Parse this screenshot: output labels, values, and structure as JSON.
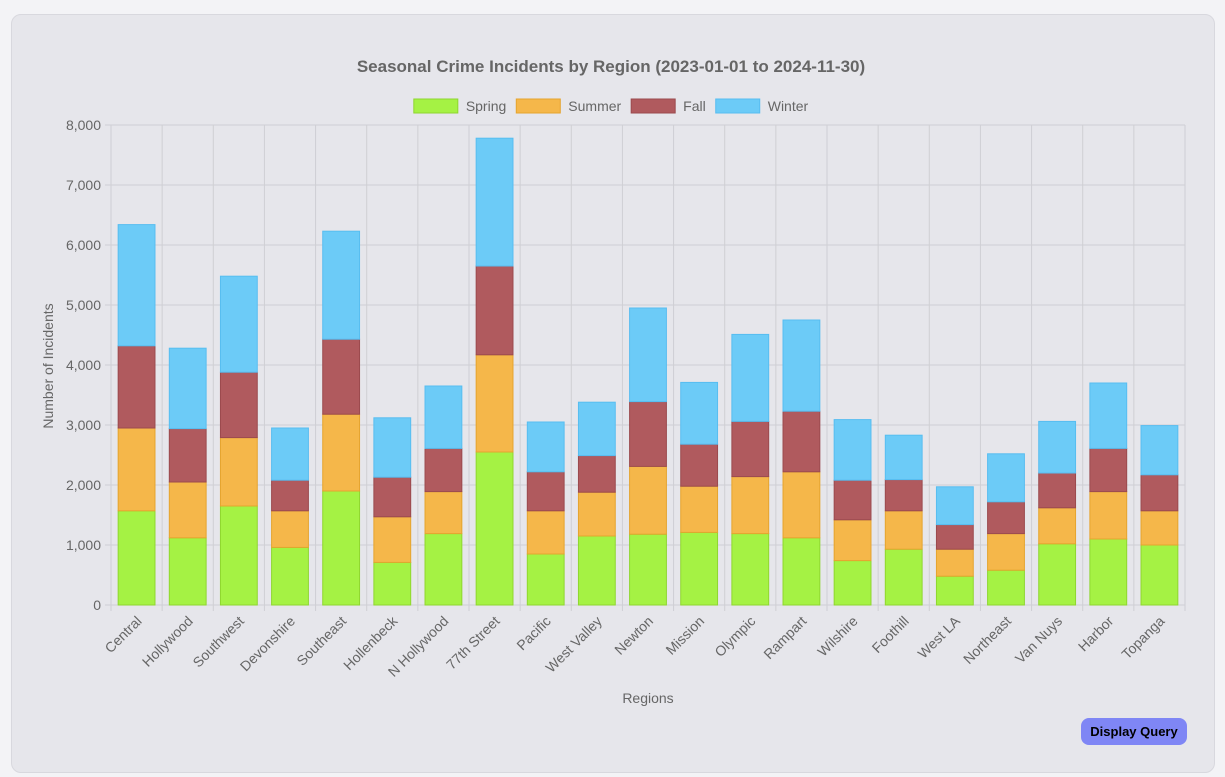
{
  "button": {
    "display_query": "Display Query"
  },
  "chart_data": {
    "type": "bar",
    "stacked": true,
    "title": "Seasonal Crime Incidents by Region (2023-01-01 to 2024-11-30)",
    "xlabel": "Regions",
    "ylabel": "Number of Incidents",
    "ylim": [
      0,
      8000
    ],
    "yticks": [
      0,
      1000,
      2000,
      3000,
      4000,
      5000,
      6000,
      7000,
      8000
    ],
    "ytick_labels": [
      "0",
      "1,000",
      "2,000",
      "3,000",
      "4,000",
      "5,000",
      "6,000",
      "7,000",
      "8,000"
    ],
    "grid": true,
    "legend_position": "top",
    "categories": [
      "Central",
      "Hollywood",
      "Southwest",
      "Devonshire",
      "Southeast",
      "Hollenbeck",
      "N Hollywood",
      "77th Street",
      "Pacific",
      "West Valley",
      "Newton",
      "Mission",
      "Olympic",
      "Rampart",
      "Wilshire",
      "Foothill",
      "West LA",
      "Northeast",
      "Van Nuys",
      "Harbor",
      "Topanga"
    ],
    "series": [
      {
        "name": "Spring",
        "color": "#a5f244",
        "border": "#8fd62f",
        "values": [
          1570,
          1120,
          1650,
          960,
          1900,
          710,
          1190,
          2550,
          850,
          1150,
          1180,
          1210,
          1190,
          1120,
          740,
          930,
          480,
          580,
          1020,
          1100,
          1000
        ]
      },
      {
        "name": "Summer",
        "color": "#f5b74a",
        "border": "#e5a42e",
        "values": [
          1380,
          930,
          1140,
          610,
          1280,
          760,
          700,
          1620,
          720,
          730,
          1130,
          770,
          950,
          1100,
          680,
          640,
          450,
          610,
          600,
          790,
          570
        ]
      },
      {
        "name": "Fall",
        "color": "#b05a5e",
        "border": "#9b4a4e",
        "values": [
          1370,
          890,
          1090,
          510,
          1250,
          660,
          720,
          1480,
          650,
          610,
          1080,
          700,
          920,
          1010,
          660,
          520,
          410,
          530,
          580,
          720,
          600
        ]
      },
      {
        "name": "Winter",
        "color": "#6ccbf7",
        "border": "#57bdf0",
        "values": [
          2020,
          1340,
          1600,
          870,
          1800,
          990,
          1040,
          2130,
          830,
          890,
          1560,
          1030,
          1450,
          1520,
          1010,
          740,
          630,
          800,
          860,
          1090,
          820
        ]
      }
    ]
  }
}
